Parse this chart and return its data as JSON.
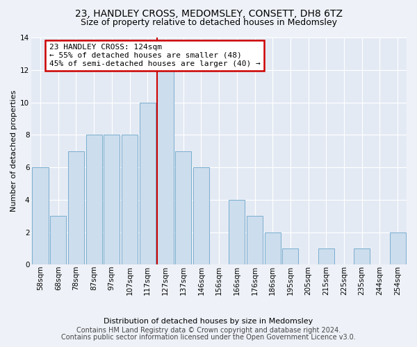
{
  "title": "23, HANDLEY CROSS, MEDOMSLEY, CONSETT, DH8 6TZ",
  "subtitle": "Size of property relative to detached houses in Medomsley",
  "xlabel": "Distribution of detached houses by size in Medomsley",
  "ylabel": "Number of detached properties",
  "bar_labels": [
    "58sqm",
    "68sqm",
    "78sqm",
    "87sqm",
    "97sqm",
    "107sqm",
    "117sqm",
    "127sqm",
    "137sqm",
    "146sqm",
    "156sqm",
    "166sqm",
    "176sqm",
    "186sqm",
    "195sqm",
    "205sqm",
    "215sqm",
    "225sqm",
    "235sqm",
    "244sqm",
    "254sqm"
  ],
  "bar_values": [
    6,
    3,
    7,
    8,
    8,
    8,
    10,
    12,
    7,
    6,
    0,
    4,
    3,
    2,
    1,
    0,
    1,
    0,
    1,
    0,
    2
  ],
  "bar_color": "#ccdded",
  "bar_edge_color": "#7aaece",
  "highlight_bin_index": 7,
  "annotation_text": "23 HANDLEY CROSS: 124sqm\n← 55% of detached houses are smaller (48)\n45% of semi-detached houses are larger (40) →",
  "annotation_box_color": "#ffffff",
  "annotation_box_edge_color": "#cc0000",
  "highlight_line_color": "#cc0000",
  "ylim": [
    0,
    14
  ],
  "yticks": [
    0,
    2,
    4,
    6,
    8,
    10,
    12,
    14
  ],
  "footer_line1": "Contains HM Land Registry data © Crown copyright and database right 2024.",
  "footer_line2": "Contains public sector information licensed under the Open Government Licence v3.0.",
  "bg_color": "#eef2f8",
  "plot_bg_color": "#e4eaf4",
  "grid_color": "#ffffff",
  "title_fontsize": 10,
  "subtitle_fontsize": 9,
  "axis_label_fontsize": 8,
  "tick_fontsize": 7.5,
  "footer_fontsize": 7,
  "annotation_fontsize": 8
}
